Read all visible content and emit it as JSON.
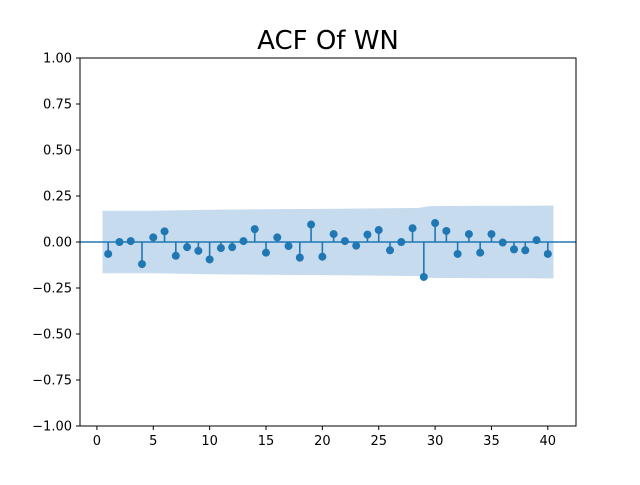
{
  "chart_data": {
    "type": "stem",
    "title": "ACF Of WN",
    "xlabel": "",
    "ylabel": "",
    "xlim": [
      -1.5,
      42.5
    ],
    "ylim": [
      -1.0,
      1.0
    ],
    "x_ticks": [
      "0",
      "5",
      "10",
      "15",
      "20",
      "25",
      "30",
      "35",
      "40"
    ],
    "y_ticks": [
      "1.00",
      "0.75",
      "0.50",
      "0.25",
      "0.00",
      "−0.25",
      "−0.50",
      "−0.75",
      "−1.00"
    ],
    "grid": false,
    "legend": "none",
    "lags": [
      1,
      2,
      3,
      4,
      5,
      6,
      7,
      8,
      9,
      10,
      11,
      12,
      13,
      14,
      15,
      16,
      17,
      18,
      19,
      20,
      21,
      22,
      23,
      24,
      25,
      26,
      27,
      28,
      29,
      30,
      31,
      32,
      33,
      34,
      35,
      36,
      37,
      38,
      39,
      40
    ],
    "acf": [
      -0.065,
      0.0,
      0.005,
      -0.12,
      0.025,
      0.058,
      -0.075,
      -0.028,
      -0.048,
      -0.095,
      -0.033,
      -0.028,
      0.005,
      0.07,
      -0.058,
      0.025,
      -0.022,
      -0.085,
      0.095,
      -0.08,
      0.043,
      0.005,
      -0.02,
      0.04,
      0.065,
      -0.045,
      0.0,
      0.075,
      -0.19,
      0.103,
      0.06,
      -0.065,
      0.043,
      -0.058,
      0.043,
      -0.003,
      -0.04,
      -0.045,
      0.01,
      -0.065
    ],
    "confidence_band": {
      "x": [
        0.5,
        5,
        10,
        15,
        20,
        25,
        28.5,
        29.5,
        35,
        40.5
      ],
      "upper": [
        0.17,
        0.17,
        0.175,
        0.178,
        0.18,
        0.183,
        0.185,
        0.195,
        0.197,
        0.198
      ],
      "lower": [
        -0.17,
        -0.17,
        -0.175,
        -0.178,
        -0.18,
        -0.183,
        -0.185,
        -0.195,
        -0.197,
        -0.198
      ]
    },
    "colors": {
      "stem": "#1f77b4",
      "band": "#c6dbed",
      "axis": "#000000"
    }
  }
}
